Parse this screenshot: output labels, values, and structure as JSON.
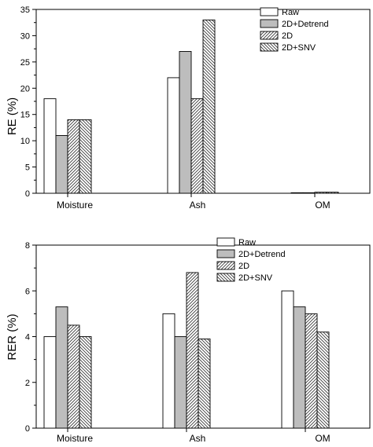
{
  "chart_data": [
    {
      "type": "bar",
      "ylabel": "RE (%)",
      "xlabel": "",
      "ylim": [
        0,
        35
      ],
      "yticks": [
        0,
        5,
        10,
        15,
        20,
        25,
        30,
        35
      ],
      "categories": [
        "Moisture",
        "Ash",
        "OM"
      ],
      "legend_position": "top-right",
      "series": [
        {
          "name": "Raw",
          "pattern": "white",
          "values": [
            18,
            22,
            0.1
          ]
        },
        {
          "name": "2D+Detrend",
          "pattern": "gray",
          "values": [
            11,
            27,
            0.1
          ]
        },
        {
          "name": "2D",
          "pattern": "hatch-forward",
          "values": [
            14,
            18,
            0.2
          ]
        },
        {
          "name": "2D+SNV",
          "pattern": "hatch-back",
          "values": [
            14,
            33,
            0.2
          ]
        }
      ]
    },
    {
      "type": "bar",
      "ylabel": "RER (%)",
      "xlabel": "",
      "ylim": [
        0,
        8
      ],
      "yticks": [
        0,
        2,
        4,
        6,
        8
      ],
      "categories": [
        "Moisture",
        "Ash",
        "OM"
      ],
      "legend_position": "top-right",
      "series": [
        {
          "name": "Raw",
          "pattern": "white",
          "values": [
            4.0,
            5.0,
            6.0
          ]
        },
        {
          "name": "2D+Detrend",
          "pattern": "gray",
          "values": [
            5.3,
            4.0,
            5.3
          ]
        },
        {
          "name": "2D",
          "pattern": "hatch-forward",
          "values": [
            4.5,
            6.8,
            5.0
          ]
        },
        {
          "name": "2D+SNV",
          "pattern": "hatch-back",
          "values": [
            4.0,
            3.9,
            4.2
          ]
        }
      ]
    }
  ]
}
